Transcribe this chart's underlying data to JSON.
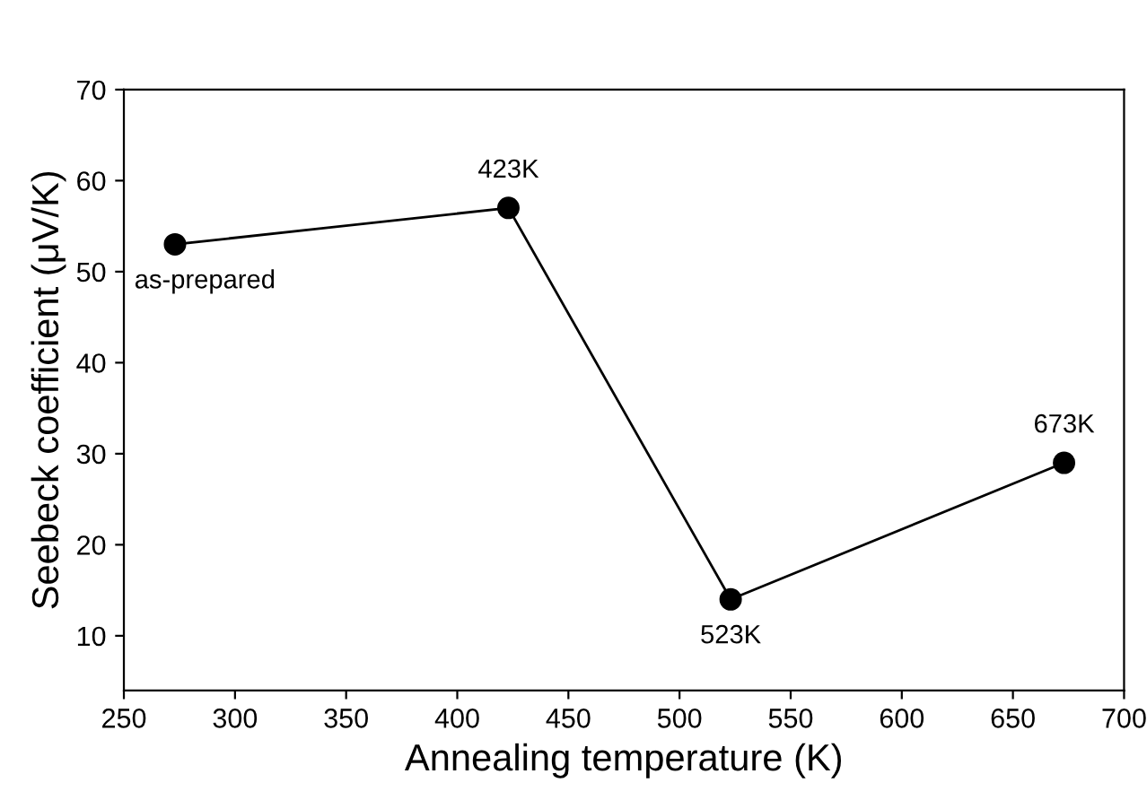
{
  "chart_data": {
    "type": "line",
    "xlabel": "Annealing temperature (K)",
    "ylabel": "Seebeck coefficient (μV/K)",
    "x": [
      273,
      423,
      523,
      673
    ],
    "series": [
      {
        "color": "#000000",
        "values": [
          53,
          57,
          14,
          29
        ]
      }
    ],
    "marker": "circle",
    "line_style": "solid",
    "grid": false,
    "legend": false,
    "xlim": [
      250,
      700
    ],
    "xticks": [
      250,
      300,
      350,
      400,
      450,
      500,
      550,
      600,
      650,
      700
    ],
    "ylim": [
      4,
      70
    ],
    "yticks": [
      10,
      20,
      30,
      40,
      50,
      60,
      70
    ],
    "annotations": [
      {
        "text": "as-prepared",
        "x": 273,
        "y": 53
      },
      {
        "text": "423K",
        "x": 423,
        "y": 57
      },
      {
        "text": "523K",
        "x": 523,
        "y": 14
      },
      {
        "text": "673K",
        "x": 673,
        "y": 29
      }
    ]
  }
}
